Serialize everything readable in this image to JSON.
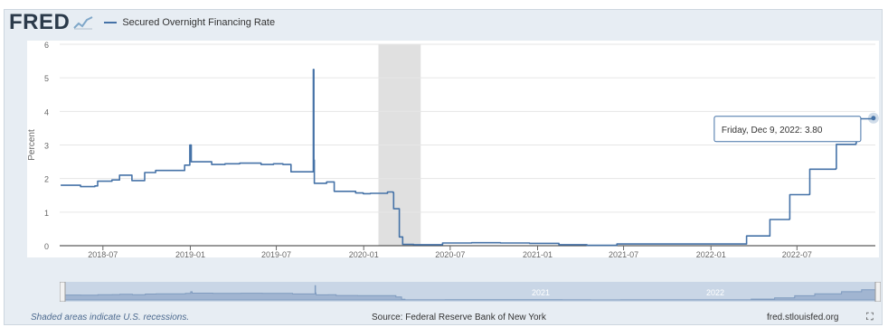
{
  "header": {
    "logo": "FRED",
    "legend_label": "Secured Overnight Financing Rate",
    "logo_icon": "chart-line-icon"
  },
  "footer": {
    "note": "Shaded areas indicate U.S. recessions.",
    "source": "Source: Federal Reserve Bank of New York",
    "site": "fred.stlouisfed.org",
    "fullscreen_icon": "fullscreen-icon"
  },
  "colors": {
    "series": "#4572a7",
    "recession": "#e0e0e0",
    "grid": "#e6e6e6",
    "tooltip_border": "#4572a7",
    "navigator_bg": "#c9d6e6",
    "navigator_series": "#7f9bbf"
  },
  "chart_data": {
    "type": "line",
    "ylabel": "Percent",
    "ylim": [
      0,
      6
    ],
    "yticks": [
      "0",
      "1",
      "2",
      "3",
      "4",
      "5",
      "6"
    ],
    "xlim": [
      "2018-04-01",
      "2022-12-13"
    ],
    "xticks": [
      "2018-07",
      "2019-01",
      "2019-07",
      "2020-01",
      "2020-07",
      "2021-01",
      "2021-07",
      "2022-01",
      "2022-07"
    ],
    "grid": true,
    "recession": {
      "start": "2020-02-01",
      "end": "2020-04-30"
    },
    "tooltip": {
      "label": "Friday, Dec 9, 2022:",
      "value": "3.80"
    },
    "navigator_labels": [
      "2021",
      "2022"
    ],
    "series": [
      {
        "name": "Secured Overnight Financing Rate",
        "points": [
          [
            "2018-04-03",
            1.8
          ],
          [
            "2018-05-15",
            1.76
          ],
          [
            "2018-06-14",
            1.78
          ],
          [
            "2018-06-20",
            1.92
          ],
          [
            "2018-07-20",
            1.96
          ],
          [
            "2018-08-05",
            2.1
          ],
          [
            "2018-08-31",
            1.94
          ],
          [
            "2018-09-27",
            2.18
          ],
          [
            "2018-10-20",
            2.24
          ],
          [
            "2018-12-20",
            2.4
          ],
          [
            "2018-12-31",
            3.0
          ],
          [
            "2019-01-03",
            2.5
          ],
          [
            "2019-02-15",
            2.42
          ],
          [
            "2019-03-15",
            2.44
          ],
          [
            "2019-04-15",
            2.46
          ],
          [
            "2019-05-30",
            2.42
          ],
          [
            "2019-06-25",
            2.44
          ],
          [
            "2019-07-15",
            2.42
          ],
          [
            "2019-08-01",
            2.2
          ],
          [
            "2019-09-10",
            2.2
          ],
          [
            "2019-09-17",
            5.25
          ],
          [
            "2019-09-18",
            2.55
          ],
          [
            "2019-09-19",
            1.86
          ],
          [
            "2019-10-15",
            1.9
          ],
          [
            "2019-10-31",
            1.62
          ],
          [
            "2019-12-15",
            1.57
          ],
          [
            "2019-12-31",
            1.55
          ],
          [
            "2020-01-15",
            1.56
          ],
          [
            "2020-02-20",
            1.6
          ],
          [
            "2020-03-03",
            1.58
          ],
          [
            "2020-03-04",
            1.1
          ],
          [
            "2020-03-16",
            0.26
          ],
          [
            "2020-03-23",
            0.04
          ],
          [
            "2020-04-15",
            0.03
          ],
          [
            "2020-06-15",
            0.08
          ],
          [
            "2020-08-15",
            0.09
          ],
          [
            "2020-10-15",
            0.08
          ],
          [
            "2020-12-15",
            0.07
          ],
          [
            "2021-02-15",
            0.03
          ],
          [
            "2021-04-15",
            0.01
          ],
          [
            "2021-06-17",
            0.05
          ],
          [
            "2021-09-15",
            0.05
          ],
          [
            "2021-12-15",
            0.05
          ],
          [
            "2022-03-16",
            0.05
          ],
          [
            "2022-03-17",
            0.29
          ],
          [
            "2022-05-04",
            0.29
          ],
          [
            "2022-05-05",
            0.78
          ],
          [
            "2022-06-15",
            0.79
          ],
          [
            "2022-06-16",
            1.52
          ],
          [
            "2022-07-27",
            1.53
          ],
          [
            "2022-07-28",
            2.28
          ],
          [
            "2022-09-21",
            2.3
          ],
          [
            "2022-09-22",
            3.02
          ],
          [
            "2022-11-02",
            3.05
          ],
          [
            "2022-11-03",
            3.78
          ],
          [
            "2022-12-09",
            3.8
          ]
        ]
      }
    ]
  }
}
